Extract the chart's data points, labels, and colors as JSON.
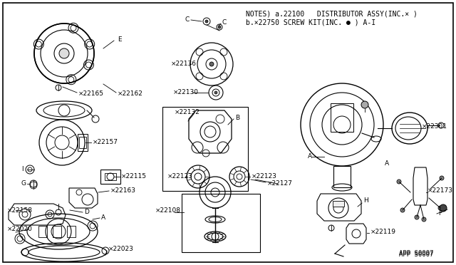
{
  "bg_color": "#ffffff",
  "border_color": "#000000",
  "notes_line1": "NOTES) a.22100   DISTRIBUTOR ASSY(INC.× )",
  "notes_line2": "b.×22750 SCREW KIT(INC. ● ) A-I",
  "footer_text": "APP S0007",
  "line_color": "#000000",
  "text_color": "#000000",
  "label_fontsize": 6.5,
  "notes_fontsize": 7.0,
  "figsize": [
    6.4,
    3.72
  ],
  "dpi": 100
}
